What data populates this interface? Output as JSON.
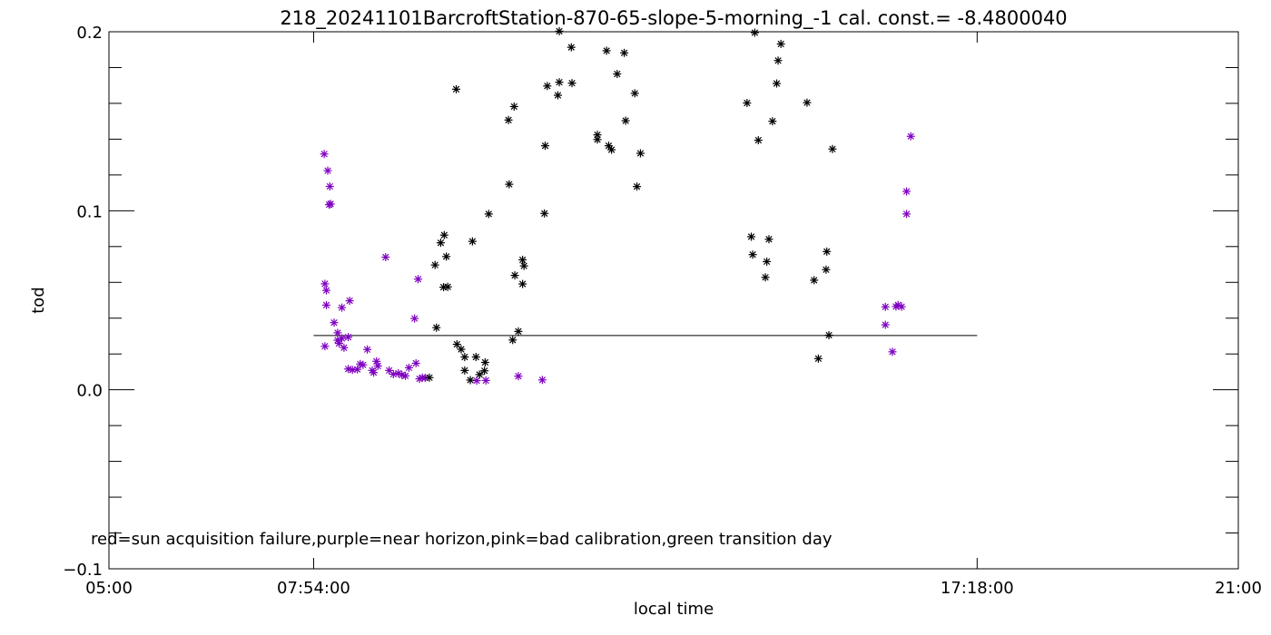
{
  "chart_data": {
    "type": "scatter",
    "title": "218_20241101BarcroftStation-870-65-slope-5-morning_-1 cal. const.= -8.4800040",
    "xlabel": "local time",
    "ylabel": "tod",
    "xlim": [
      5.0,
      21.0
    ],
    "ylim": [
      -0.1,
      0.2
    ],
    "xticks": [
      {
        "x": 5.0,
        "label": "05:00"
      },
      {
        "x": 7.9,
        "label": "07:54:00"
      },
      {
        "x": 17.3,
        "label": "17:18:00"
      },
      {
        "x": 21.0,
        "label": "21:00"
      }
    ],
    "yticks": [
      {
        "y": -0.1,
        "label": "−0.1"
      },
      {
        "y": 0.0,
        "label": "0.0"
      },
      {
        "y": 0.1,
        "label": "0.1"
      },
      {
        "y": 0.2,
        "label": "0.2"
      }
    ],
    "reference_line": {
      "x": [
        7.9,
        17.3
      ],
      "y": 0.0303
    },
    "annotation": "red=sun acquisition failure,purple=near horizon,pink=bad calibration,green transition day",
    "colors": {
      "normal": "#000000",
      "near_horizon": "#7f00c0",
      "axis": "#000000"
    },
    "series": [
      {
        "marker": "asterisk",
        "color_key": "near_horizon",
        "points": [
          [
            8.05,
            0.1317
          ],
          [
            8.1,
            0.1224
          ],
          [
            8.13,
            0.1136
          ],
          [
            8.12,
            0.1034
          ],
          [
            8.14,
            0.1038
          ],
          [
            8.06,
            0.0592
          ],
          [
            8.08,
            0.0555
          ],
          [
            8.08,
            0.0473
          ],
          [
            8.19,
            0.0375
          ],
          [
            8.3,
            0.0459
          ],
          [
            8.24,
            0.0318
          ],
          [
            8.24,
            0.0277
          ],
          [
            8.26,
            0.0259
          ],
          [
            8.33,
            0.0235
          ],
          [
            8.06,
            0.0243
          ],
          [
            8.39,
            0.0294
          ],
          [
            8.39,
            0.0116
          ],
          [
            8.45,
            0.0111
          ],
          [
            8.52,
            0.0114
          ],
          [
            8.56,
            0.0144
          ],
          [
            8.6,
            0.0139
          ],
          [
            8.66,
            0.0225
          ],
          [
            8.73,
            0.0108
          ],
          [
            8.75,
            0.0096
          ],
          [
            8.79,
            0.0159
          ],
          [
            8.81,
            0.0133
          ],
          [
            8.92,
            0.0741
          ],
          [
            8.97,
            0.0108
          ],
          [
            9.03,
            0.0087
          ],
          [
            9.1,
            0.0092
          ],
          [
            9.15,
            0.0083
          ],
          [
            9.2,
            0.0078
          ],
          [
            9.25,
            0.0123
          ],
          [
            9.33,
            0.0398
          ],
          [
            9.38,
            0.0618
          ],
          [
            9.4,
            0.0061
          ],
          [
            9.44,
            0.0068
          ],
          [
            9.48,
            0.0066
          ],
          [
            10.21,
            0.0051
          ],
          [
            10.34,
            0.0052
          ],
          [
            10.8,
            0.0076
          ],
          [
            11.14,
            0.0055
          ],
          [
            16.0,
            0.0463
          ],
          [
            16.0,
            0.0363
          ],
          [
            16.1,
            0.0212
          ],
          [
            16.15,
            0.0465
          ],
          [
            16.18,
            0.0474
          ],
          [
            16.23,
            0.0464
          ],
          [
            16.3,
            0.0982
          ],
          [
            16.3,
            0.1108
          ],
          [
            16.36,
            0.1416
          ],
          [
            8.41,
            0.0497
          ],
          [
            8.3,
            0.0287
          ],
          [
            9.35,
            0.0148
          ]
        ]
      },
      {
        "marker": "asterisk",
        "color_key": "normal",
        "points": [
          [
            9.54,
            0.0068
          ],
          [
            9.62,
            0.0697
          ],
          [
            9.64,
            0.0347
          ],
          [
            9.7,
            0.0821
          ],
          [
            9.75,
            0.0864
          ],
          [
            9.74,
            0.0573
          ],
          [
            9.78,
            0.0744
          ],
          [
            9.8,
            0.0575
          ],
          [
            9.92,
            0.1679
          ],
          [
            9.93,
            0.0254
          ],
          [
            9.99,
            0.0226
          ],
          [
            10.04,
            0.0183
          ],
          [
            10.04,
            0.0108
          ],
          [
            10.12,
            0.0054
          ],
          [
            10.15,
            0.0829
          ],
          [
            10.2,
            0.0183
          ],
          [
            10.25,
            0.0085
          ],
          [
            10.32,
            0.0106
          ],
          [
            10.33,
            0.0153
          ],
          [
            10.38,
            0.0982
          ],
          [
            10.67,
            0.1148
          ],
          [
            10.66,
            0.1507
          ],
          [
            10.74,
            0.1582
          ],
          [
            10.75,
            0.0639
          ],
          [
            10.72,
            0.0278
          ],
          [
            10.8,
            0.0326
          ],
          [
            10.86,
            0.0726
          ],
          [
            10.86,
            0.0591
          ],
          [
            10.88,
            0.0692
          ],
          [
            11.17,
            0.0985
          ],
          [
            11.18,
            0.1363
          ],
          [
            11.21,
            0.1697
          ],
          [
            11.36,
            0.1645
          ],
          [
            11.38,
            0.2003
          ],
          [
            11.38,
            0.1718
          ],
          [
            11.56,
            0.1713
          ],
          [
            11.55,
            0.1913
          ],
          [
            11.92,
            0.1424
          ],
          [
            11.92,
            0.1398
          ],
          [
            12.08,
            0.1363
          ],
          [
            12.12,
            0.1341
          ],
          [
            12.05,
            0.1894
          ],
          [
            12.2,
            0.1764
          ],
          [
            12.3,
            0.1882
          ],
          [
            12.32,
            0.1503
          ],
          [
            12.45,
            0.1656
          ],
          [
            12.48,
            0.1135
          ],
          [
            12.53,
            0.1321
          ],
          [
            14.04,
            0.1602
          ],
          [
            14.1,
            0.0855
          ],
          [
            14.12,
            0.0755
          ],
          [
            14.15,
            0.1995
          ],
          [
            14.2,
            0.1394
          ],
          [
            14.3,
            0.0628
          ],
          [
            14.32,
            0.0716
          ],
          [
            14.35,
            0.0841
          ],
          [
            14.4,
            0.15
          ],
          [
            14.46,
            0.1711
          ],
          [
            14.48,
            0.1839
          ],
          [
            14.52,
            0.1932
          ],
          [
            14.89,
            0.1604
          ],
          [
            14.99,
            0.0612
          ],
          [
            15.05,
            0.0174
          ],
          [
            15.16,
            0.0671
          ],
          [
            15.17,
            0.0772
          ],
          [
            15.2,
            0.0305
          ],
          [
            15.25,
            0.1345
          ]
        ]
      }
    ]
  }
}
